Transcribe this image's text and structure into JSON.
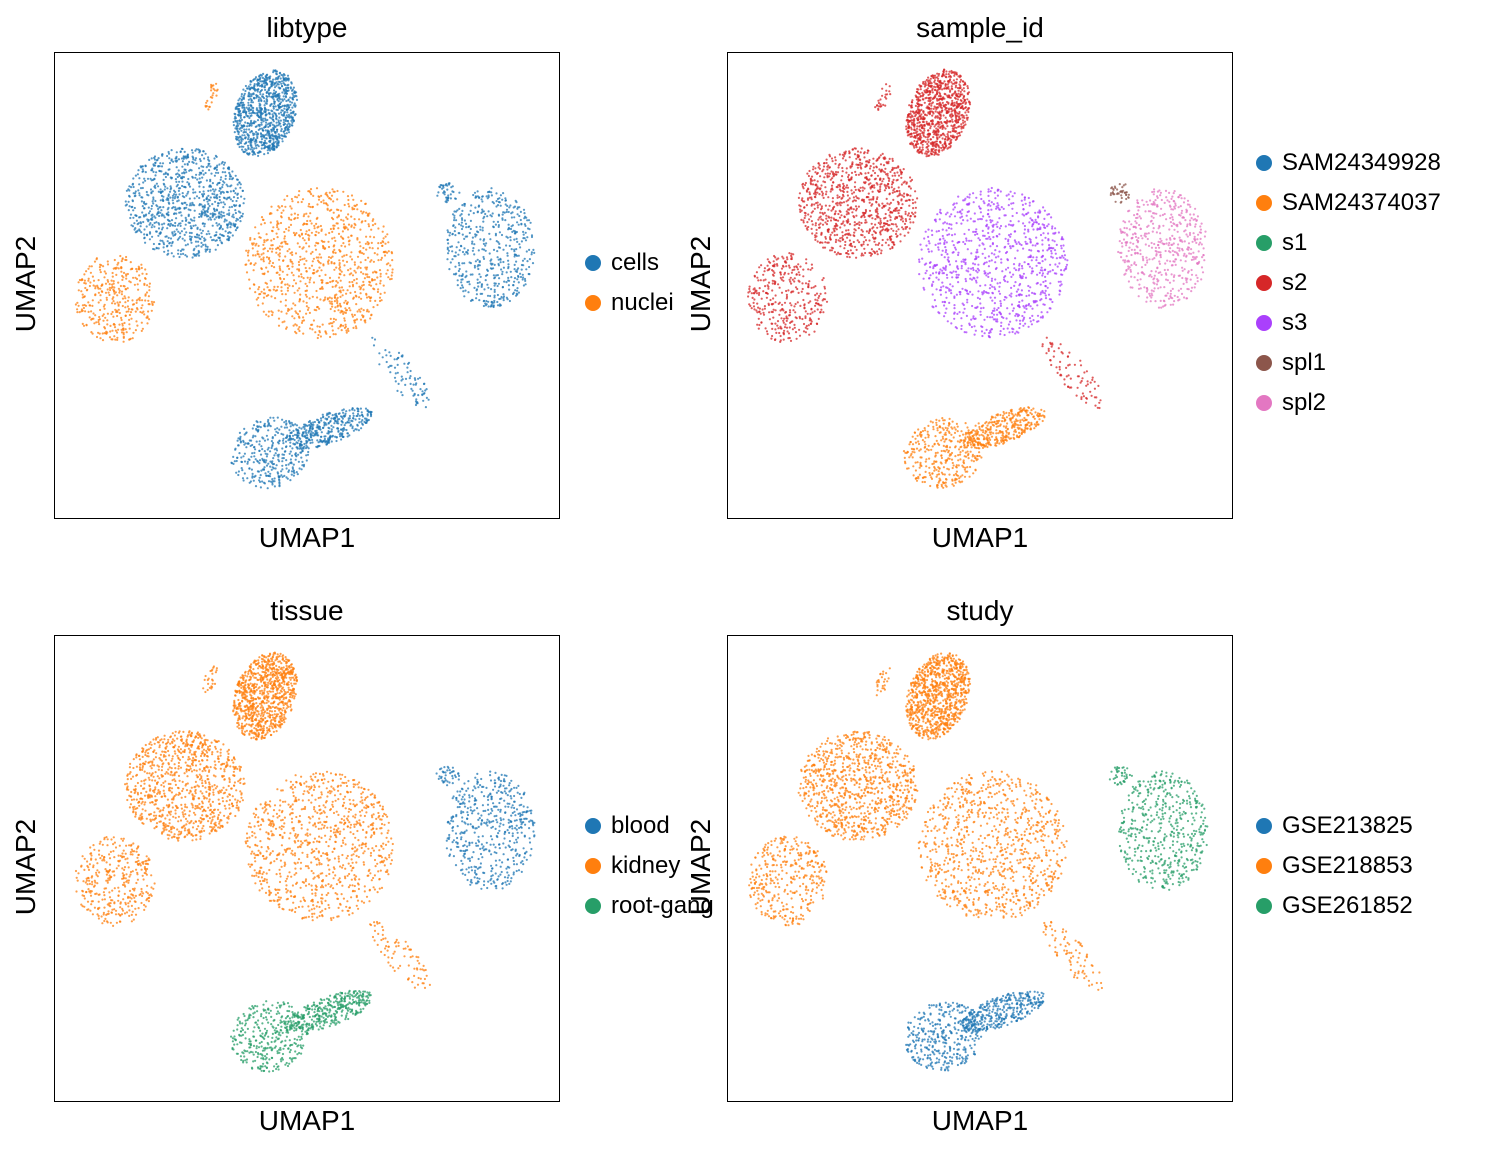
{
  "figure": {
    "x_label": "UMAP1",
    "y_label": "UMAP2"
  },
  "chart_data": [
    {
      "type": "scatter",
      "title": "libtype",
      "xlabel": "UMAP1",
      "ylabel": "UMAP2",
      "grid": false,
      "legend_position": "right",
      "legend": [
        {
          "name": "cells",
          "color": "#1f77b4"
        },
        {
          "name": "nuclei",
          "color": "#ff7f0e"
        }
      ]
    },
    {
      "type": "scatter",
      "title": "sample_id",
      "xlabel": "UMAP1",
      "ylabel": "UMAP2",
      "grid": false,
      "legend_position": "right",
      "legend": [
        {
          "name": "SAM24349928",
          "color": "#1f77b4"
        },
        {
          "name": "SAM24374037",
          "color": "#ff7f0e"
        },
        {
          "name": "s1",
          "color": "#279e68"
        },
        {
          "name": "s2",
          "color": "#d62728"
        },
        {
          "name": "s3",
          "color": "#aa40fc"
        },
        {
          "name": "spl1",
          "color": "#8c564b"
        },
        {
          "name": "spl2",
          "color": "#e377c2"
        }
      ]
    },
    {
      "type": "scatter",
      "title": "tissue",
      "xlabel": "UMAP1",
      "ylabel": "UMAP2",
      "grid": false,
      "legend_position": "right",
      "legend": [
        {
          "name": "blood",
          "color": "#1f77b4"
        },
        {
          "name": "kidney",
          "color": "#ff7f0e"
        },
        {
          "name": "root-gang",
          "color": "#279e68"
        }
      ]
    },
    {
      "type": "scatter",
      "title": "study",
      "xlabel": "UMAP1",
      "ylabel": "UMAP2",
      "grid": false,
      "legend_position": "right",
      "legend": [
        {
          "name": "GSE213825",
          "color": "#1f77b4"
        },
        {
          "name": "GSE218853",
          "color": "#ff7f0e"
        },
        {
          "name": "GSE261852",
          "color": "#279e68"
        }
      ]
    }
  ]
}
